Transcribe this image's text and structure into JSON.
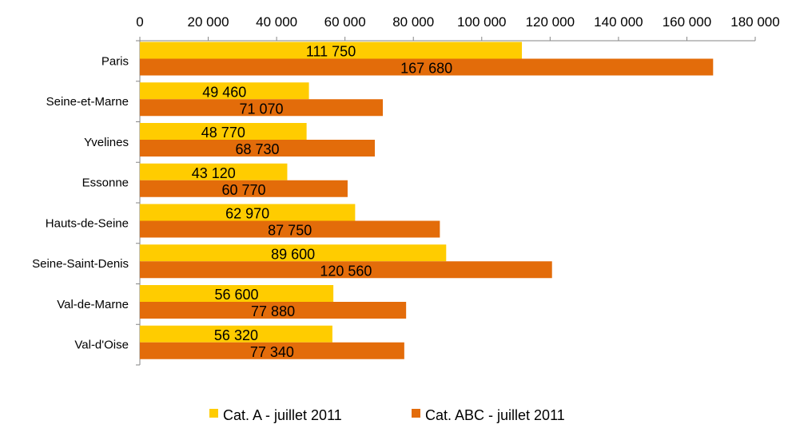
{
  "chart_data": {
    "type": "bar",
    "orientation": "horizontal",
    "categories": [
      "Paris",
      "Seine-et-Marne",
      "Yvelines",
      "Essonne",
      "Hauts-de-Seine",
      "Seine-Saint-Denis",
      "Val-de-Marne",
      "Val-d'Oise"
    ],
    "series": [
      {
        "name": "Cat. A - juillet  2011",
        "color": "#ffcc00",
        "values": [
          111750,
          49460,
          48770,
          43120,
          62970,
          89600,
          56600,
          56320
        ],
        "labels": [
          "111 750",
          "49 460",
          "48 770",
          "43 120",
          "62 970",
          "89 600",
          "56 600",
          "56 320"
        ]
      },
      {
        "name": "Cat. ABC - juillet  2011",
        "color": "#e36c0a",
        "values": [
          167680,
          71070,
          68730,
          60770,
          87750,
          120560,
          77880,
          77340
        ],
        "labels": [
          "167 680",
          "71 070",
          "68 730",
          "60 770",
          "87 750",
          "120 560",
          "77 880",
          "77 340"
        ]
      }
    ],
    "xlim": [
      0,
      180000
    ],
    "xticks": [
      0,
      20000,
      40000,
      60000,
      80000,
      100000,
      120000,
      140000,
      160000,
      180000
    ],
    "xtick_labels": [
      "0",
      "20 000",
      "40 000",
      "60 000",
      "80 000",
      "100 000",
      "120 000",
      "140 000",
      "160 000",
      "180 000"
    ],
    "axis_position": "top",
    "grid": false,
    "legend_position": "bottom"
  }
}
